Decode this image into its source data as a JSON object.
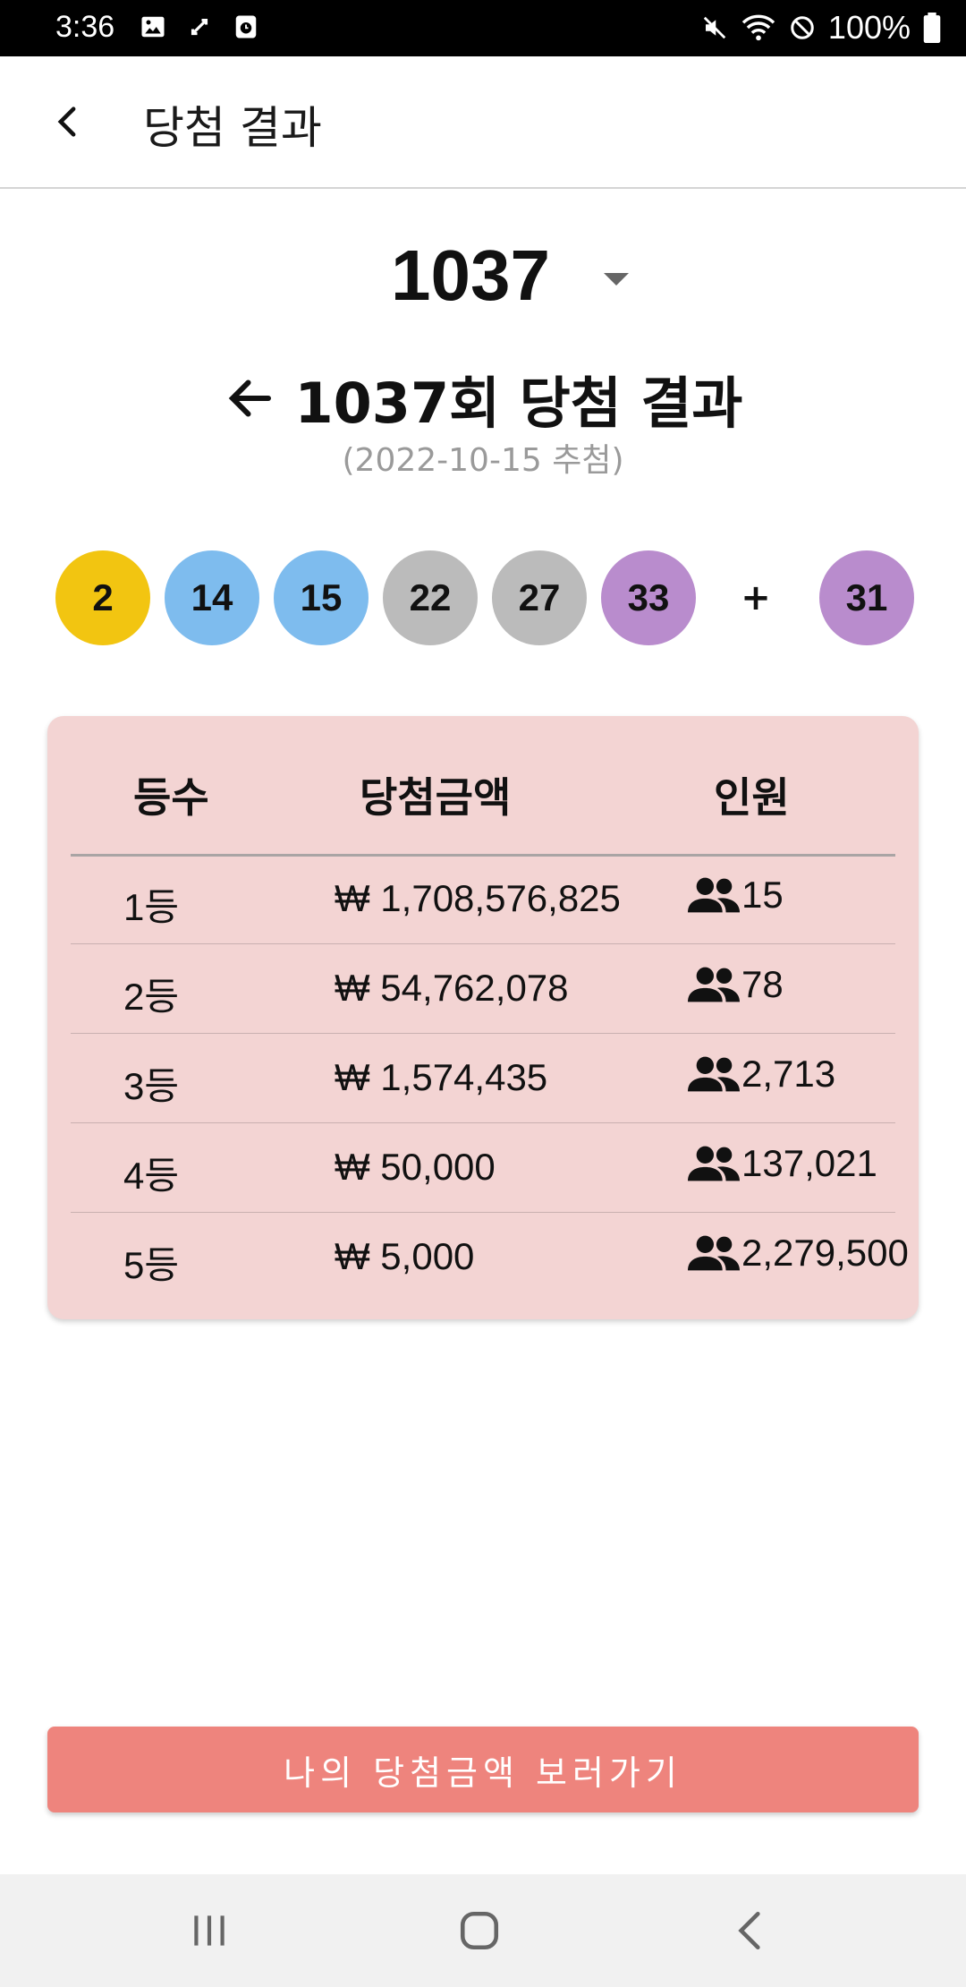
{
  "status_bar": {
    "time": "3:36",
    "battery": "100%",
    "icons_left": [
      "image-icon",
      "sync-icon",
      "clock-icon"
    ],
    "icons_right": [
      "mute-icon",
      "wifi-icon",
      "block-icon",
      "battery-icon"
    ]
  },
  "app_bar": {
    "title": "당첨 결과"
  },
  "round_selector": {
    "value": "1037"
  },
  "result": {
    "title": "1037회 당첨 결과",
    "date": "(2022-10-15 추첨)"
  },
  "balls": {
    "numbers": [
      {
        "value": "2",
        "color": "#f2c511"
      },
      {
        "value": "14",
        "color": "#7ebcee"
      },
      {
        "value": "15",
        "color": "#7ebcee"
      },
      {
        "value": "22",
        "color": "#bbbbbb"
      },
      {
        "value": "27",
        "color": "#bbbbbb"
      },
      {
        "value": "33",
        "color": "#b98ccd"
      }
    ],
    "plus": "+",
    "bonus": {
      "value": "31",
      "color": "#b98ccd"
    }
  },
  "table": {
    "headers": [
      "등수",
      "당첨금액",
      "인원"
    ],
    "rows": [
      {
        "rank": "1등",
        "prize": "₩ 1,708,576,825",
        "count": "15"
      },
      {
        "rank": "2등",
        "prize": "₩ 54,762,078",
        "count": "78"
      },
      {
        "rank": "3등",
        "prize": "₩ 1,574,435",
        "count": "2,713"
      },
      {
        "rank": "4등",
        "prize": "₩ 50,000",
        "count": "137,021"
      },
      {
        "rank": "5등",
        "prize": "₩ 5,000",
        "count": "2,279,500"
      }
    ]
  },
  "my_prize_button": {
    "label": "나의 당첨금액 보러가기"
  }
}
